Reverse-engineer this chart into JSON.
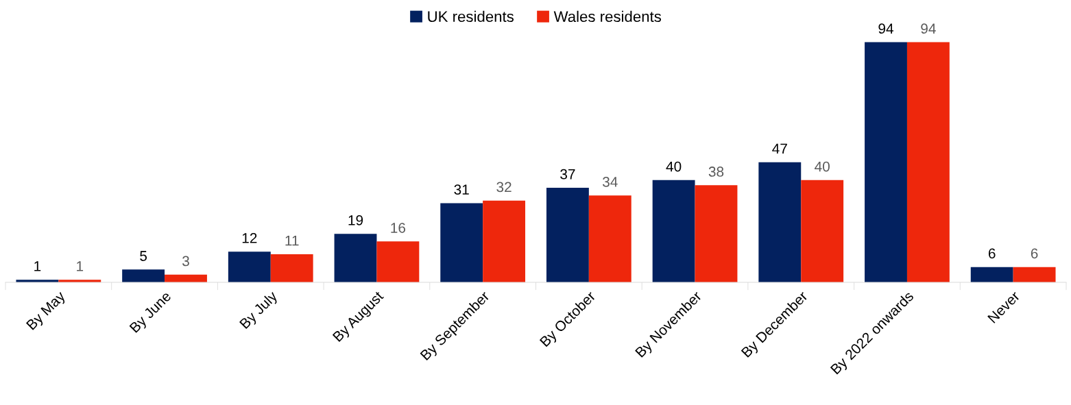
{
  "chart_data": {
    "type": "bar",
    "categories": [
      "By May",
      "By June",
      "By July",
      "By August",
      "By September",
      "By October",
      "By November",
      "By December",
      "By 2022 onwards",
      "Never"
    ],
    "series": [
      {
        "name": "UK residents",
        "color": "#03215f",
        "values": [
          1,
          5,
          12,
          19,
          31,
          37,
          40,
          47,
          94,
          6
        ]
      },
      {
        "name": "Wales residents",
        "color": "#ee270c",
        "values": [
          1,
          3,
          11,
          16,
          32,
          34,
          38,
          40,
          94,
          6
        ]
      }
    ],
    "data_labels": true,
    "legend": "top",
    "grid": false
  }
}
